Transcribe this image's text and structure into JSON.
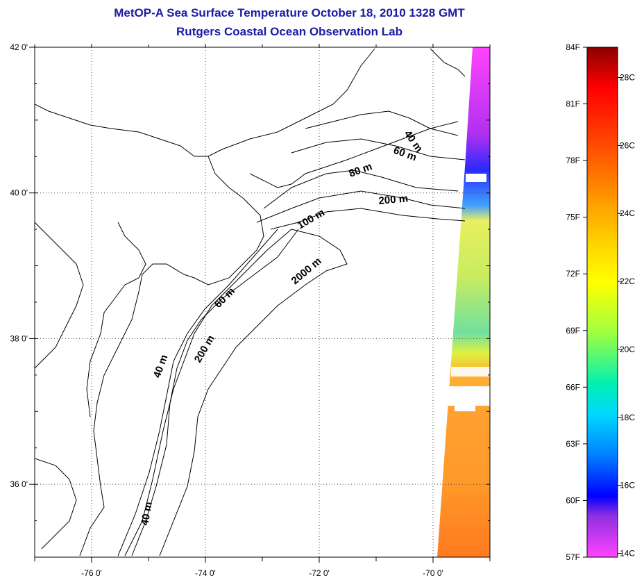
{
  "title": {
    "line1": "MetOP-A Sea Surface Temperature October 18, 2010 1328 GMT",
    "line2": "Rutgers Coastal Ocean Observation Lab"
  },
  "map": {
    "lon_ticks": [
      "-76 0'",
      "-74 0'",
      "-72 0'",
      "-70 0'"
    ],
    "lat_ticks": [
      "42 0'",
      "40 0'",
      "38 0'",
      "36 0'"
    ],
    "lon_range": [
      -77.0,
      -69.0
    ],
    "lat_range": [
      35.0,
      42.0
    ],
    "grid": "dotted",
    "contour_labels": [
      "40 m",
      "60 m",
      "80 m",
      "200 m",
      "100 m",
      "2000 m",
      "60 m",
      "40 m",
      "200 m",
      "40 m"
    ]
  },
  "colorbar": {
    "fahrenheit_labels": [
      "84F",
      "81F",
      "78F",
      "75F",
      "72F",
      "69F",
      "66F",
      "63F",
      "60F",
      "57F"
    ],
    "celsius_labels": [
      "28C",
      "26C",
      "24C",
      "22C",
      "20C",
      "18C",
      "16C",
      "14C"
    ],
    "range_f": [
      57,
      84
    ],
    "colors": [
      "#8b0000",
      "#ff0000",
      "#ff7800",
      "#ffd200",
      "#ffff00",
      "#00e6b4",
      "#00c8ff",
      "#0000ff",
      "#8a2be2",
      "#ff44ff"
    ]
  }
}
